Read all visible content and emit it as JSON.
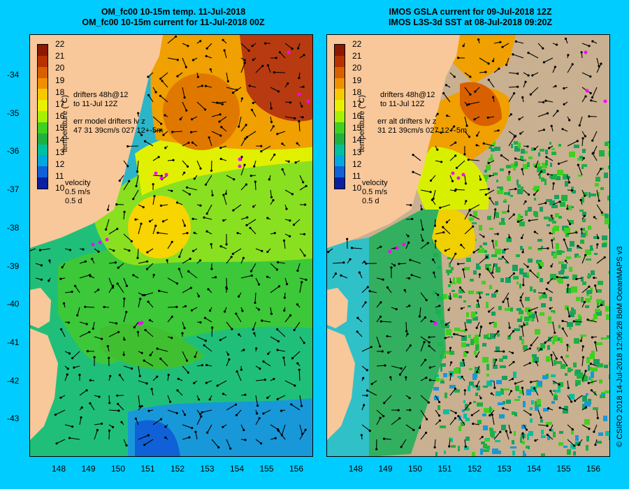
{
  "left_panel": {
    "title_line1": "OM_fc00 10-15m temp. 11-Jul-2018",
    "title_line2": "OM_fc00 10-15m current for 11-Jul-2018 00Z",
    "drifters_line1": "drifters 48h@12",
    "drifters_line2": "to 11-Jul 12Z",
    "err_line1": "err model drifters  lv z",
    "err_line2": "47 31 39cm/s 027 12+-5m"
  },
  "right_panel": {
    "title_line1": "IMOS GSLA current for 09-Jul-2018 12Z",
    "title_line2": "IMOS L3S-3d SST at 08-Jul-2018 09:20Z",
    "drifters_line1": "drifters 48h@12",
    "drifters_line2": "to 11-Jul 12Z",
    "err_line1": "err alt drifters  lv z",
    "err_line2": "31 21 39cm/s 027 12+-5m"
  },
  "colorbar": {
    "title": "temperature (°C)",
    "ticks": [
      "22",
      "21",
      "20",
      "19",
      "18",
      "17",
      "16",
      "15",
      "14",
      "13",
      "12",
      "11",
      "10"
    ],
    "colors": [
      "#8b1a00",
      "#b83200",
      "#d86000",
      "#f09000",
      "#f8c800",
      "#e8f000",
      "#a8f000",
      "#40d020",
      "#20b040",
      "#00c0a0",
      "#00a8e0",
      "#1060d8",
      "#0a20a0"
    ]
  },
  "velocity_legend": {
    "label": "velocity",
    "speed": "0.5 m/s",
    "duration": "0.5 d"
  },
  "axes": {
    "lat_ticks": [
      "-34",
      "-35",
      "-36",
      "-37",
      "-38",
      "-39",
      "-40",
      "-41",
      "-42",
      "-43"
    ],
    "lon_ticks": [
      "148",
      "149",
      "150",
      "151",
      "152",
      "153",
      "154",
      "155",
      "156"
    ]
  },
  "credit": "© CSIRO 2018  14-Jul-2018 12:06:28 BoM OceanMAPS v3",
  "colors": {
    "background": "#00ccff",
    "land": "#f8c89a",
    "drifter": "#ff00ff",
    "no_data": "#c8b090"
  }
}
